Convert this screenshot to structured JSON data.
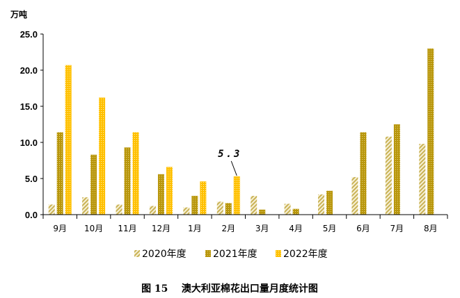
{
  "chart_data": {
    "type": "bar",
    "title": "",
    "caption": "图 15    澳大利亚棉花出口量月度统计图",
    "ylabel": "万吨",
    "xlabel": "",
    "ylim": [
      0,
      25
    ],
    "yticks": [
      "0.0",
      "5.0",
      "10.0",
      "15.0",
      "20.0",
      "25.0"
    ],
    "categories": [
      "9月",
      "10月",
      "11月",
      "12月",
      "1月",
      "2月",
      "3月",
      "4月",
      "5月",
      "6月",
      "7月",
      "8月"
    ],
    "series": [
      {
        "name": "2020年度",
        "color": "#e3d499",
        "pattern": "diagonal-hatch",
        "values": [
          1.4,
          2.4,
          1.4,
          1.2,
          1.0,
          1.8,
          2.6,
          1.5,
          2.8,
          5.2,
          10.8,
          9.8
        ]
      },
      {
        "name": "2021年度",
        "color": "#b8960c",
        "pattern": "dotted",
        "values": [
          11.4,
          8.3,
          9.3,
          5.6,
          2.6,
          1.6,
          0.7,
          0.8,
          3.3,
          11.4,
          12.5,
          23.0
        ]
      },
      {
        "name": "2022年度",
        "color": "#ffc000",
        "pattern": "dotted",
        "values": [
          20.7,
          16.2,
          11.4,
          6.6,
          4.6,
          5.3,
          null,
          null,
          null,
          null,
          null,
          null
        ]
      }
    ],
    "annotations": [
      {
        "text": "5.3",
        "series": "2022年度",
        "category": "2月"
      }
    ],
    "grid": false,
    "legend_position": "bottom"
  }
}
